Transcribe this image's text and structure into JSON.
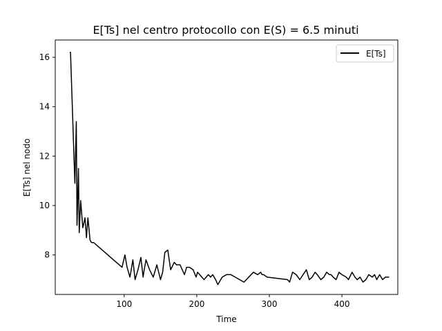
{
  "chart_data": {
    "type": "line",
    "title": "E[Ts] nel centro protocollo con E(S) = 6.5 minuti",
    "xlabel": "Time",
    "ylabel": "E[Ts] nel nodo",
    "xlim": [
      5,
      477
    ],
    "ylim": [
      6.4,
      16.7
    ],
    "xticks": [
      100,
      200,
      300,
      400
    ],
    "yticks": [
      8,
      10,
      12,
      14,
      16
    ],
    "grid": false,
    "legend_position": "top-right",
    "series": [
      {
        "name": "E[Ts]",
        "color": "#000000",
        "x": [
          25,
          26,
          32,
          34,
          35,
          37,
          38,
          40,
          43,
          46,
          48,
          50,
          53,
          55,
          58,
          97,
          101,
          104,
          108,
          112,
          115,
          119,
          123,
          126,
          127,
          130,
          135,
          140,
          145,
          150,
          153,
          156,
          160,
          164,
          169,
          172,
          177,
          183,
          186,
          190,
          195,
          199,
          201,
          204,
          210,
          216,
          219,
          222,
          226,
          229,
          235,
          241,
          247,
          253,
          265,
          278,
          284,
          288,
          290,
          292,
          297,
          325,
          328,
          332,
          337,
          342,
          351,
          355,
          359,
          363,
          366,
          371,
          375,
          379,
          383,
          385,
          388,
          392,
          396,
          400,
          406,
          409,
          414,
          418,
          421,
          425,
          429,
          433,
          437,
          442,
          445,
          448,
          452,
          456,
          460,
          465
        ],
        "y": [
          16.2,
          16.2,
          10.9,
          13.4,
          9.2,
          11.5,
          8.9,
          10.2,
          9.1,
          9.5,
          8.7,
          9.5,
          8.6,
          8.5,
          8.5,
          7.5,
          8.0,
          7.5,
          7.1,
          7.8,
          7.0,
          7.4,
          7.9,
          7.1,
          7.3,
          7.8,
          7.4,
          7.1,
          7.6,
          7.0,
          7.3,
          8.1,
          8.2,
          7.4,
          7.7,
          7.6,
          7.6,
          7.2,
          7.5,
          7.5,
          7.4,
          7.1,
          7.3,
          7.2,
          7.0,
          7.2,
          7.1,
          7.2,
          7.0,
          6.8,
          7.1,
          7.2,
          7.2,
          7.1,
          6.9,
          7.3,
          7.2,
          7.3,
          7.2,
          7.2,
          7.1,
          7.0,
          6.9,
          7.3,
          7.2,
          7.0,
          7.4,
          7.0,
          7.1,
          7.3,
          7.2,
          7.0,
          7.1,
          7.3,
          7.2,
          7.2,
          7.1,
          7.0,
          7.3,
          7.2,
          7.1,
          7.0,
          7.3,
          7.1,
          7.0,
          7.1,
          6.9,
          7.0,
          7.2,
          7.1,
          7.2,
          7.0,
          7.2,
          7.0,
          7.1,
          7.1
        ]
      }
    ]
  }
}
